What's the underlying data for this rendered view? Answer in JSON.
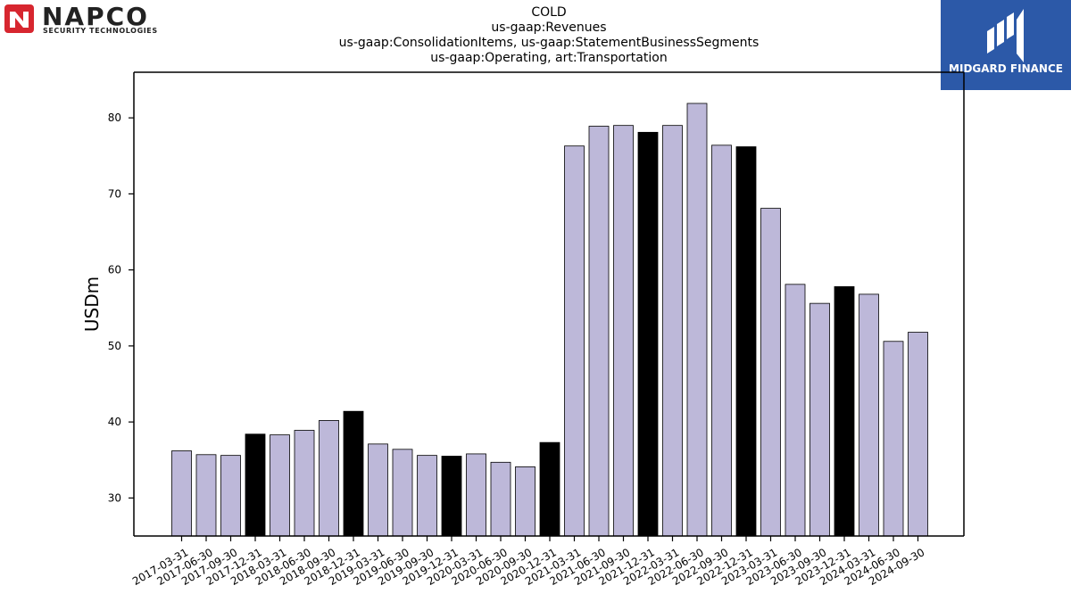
{
  "logos": {
    "left": {
      "text": "NAPCO",
      "subtext": "SECURITY TECHNOLOGIES",
      "color": "#d7262f",
      "icon": "napco-n-icon"
    },
    "right": {
      "text": "MIDGARD FINANCE",
      "background": "#2c59a8",
      "icon": "midgard-m-icon"
    }
  },
  "chart_data": {
    "type": "bar",
    "title_lines": [
      "COLD",
      "us-gaap:Revenues",
      "us-gaap:ConsolidationItems, us-gaap:StatementBusinessSegments",
      "us-gaap:Operating, art:Transportation"
    ],
    "xlabel": "",
    "ylabel": "USDm",
    "ylim": [
      25,
      86
    ],
    "yticks": [
      30,
      40,
      50,
      60,
      70,
      80
    ],
    "grid": false,
    "categories": [
      "2017-03-31",
      "2017-06-30",
      "2017-09-30",
      "2017-12-31",
      "2018-03-31",
      "2018-06-30",
      "2018-09-30",
      "2018-12-31",
      "2019-03-31",
      "2019-06-30",
      "2019-09-30",
      "2019-12-31",
      "2020-03-31",
      "2020-06-30",
      "2020-09-30",
      "2020-12-31",
      "2021-03-31",
      "2021-06-30",
      "2021-09-30",
      "2021-12-31",
      "2022-03-31",
      "2022-06-30",
      "2022-09-30",
      "2022-12-31",
      "2023-03-31",
      "2023-06-30",
      "2023-09-30",
      "2023-12-31",
      "2024-03-31",
      "2024-06-30",
      "2024-09-30"
    ],
    "values": [
      36.2,
      35.7,
      35.6,
      38.4,
      38.3,
      38.9,
      40.2,
      41.4,
      37.1,
      36.4,
      35.6,
      35.5,
      35.8,
      34.7,
      34.1,
      37.3,
      76.3,
      78.9,
      79.0,
      78.1,
      79.0,
      81.9,
      76.4,
      76.2,
      68.1,
      58.1,
      55.6,
      57.8,
      56.8,
      50.6,
      51.8
    ],
    "colors": {
      "quarter": "#bdb8d9",
      "year_end": "#000000",
      "edge": "#000000"
    }
  }
}
